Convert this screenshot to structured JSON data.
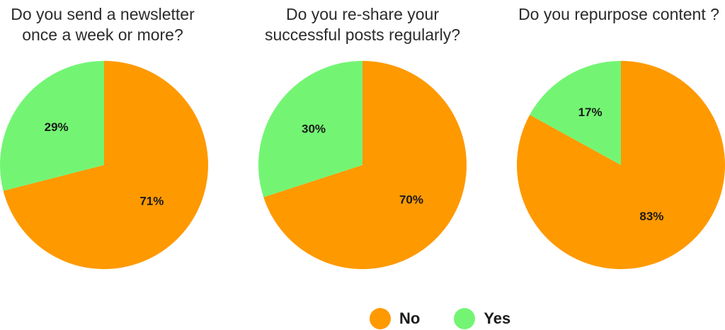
{
  "colors": {
    "no": "#FF9900",
    "yes": "#73F573"
  },
  "legend": [
    {
      "label": "No",
      "color": "#FF9900"
    },
    {
      "label": "Yes",
      "color": "#73F573"
    }
  ],
  "chart_data": [
    {
      "type": "pie",
      "title": "Do you send a newsletter\nonce a week or more?",
      "categories": [
        "No",
        "Yes"
      ],
      "values": [
        71,
        29
      ],
      "labels": [
        "71%",
        "29%"
      ]
    },
    {
      "type": "pie",
      "title": "Do you re-share your\nsuccessful posts regularly?",
      "categories": [
        "No",
        "Yes"
      ],
      "values": [
        70,
        30
      ],
      "labels": [
        "70%",
        "30%"
      ]
    },
    {
      "type": "pie",
      "title": "Do you repurpose content ?",
      "categories": [
        "No",
        "Yes"
      ],
      "values": [
        83,
        17
      ],
      "labels": [
        "83%",
        "17%"
      ]
    }
  ]
}
